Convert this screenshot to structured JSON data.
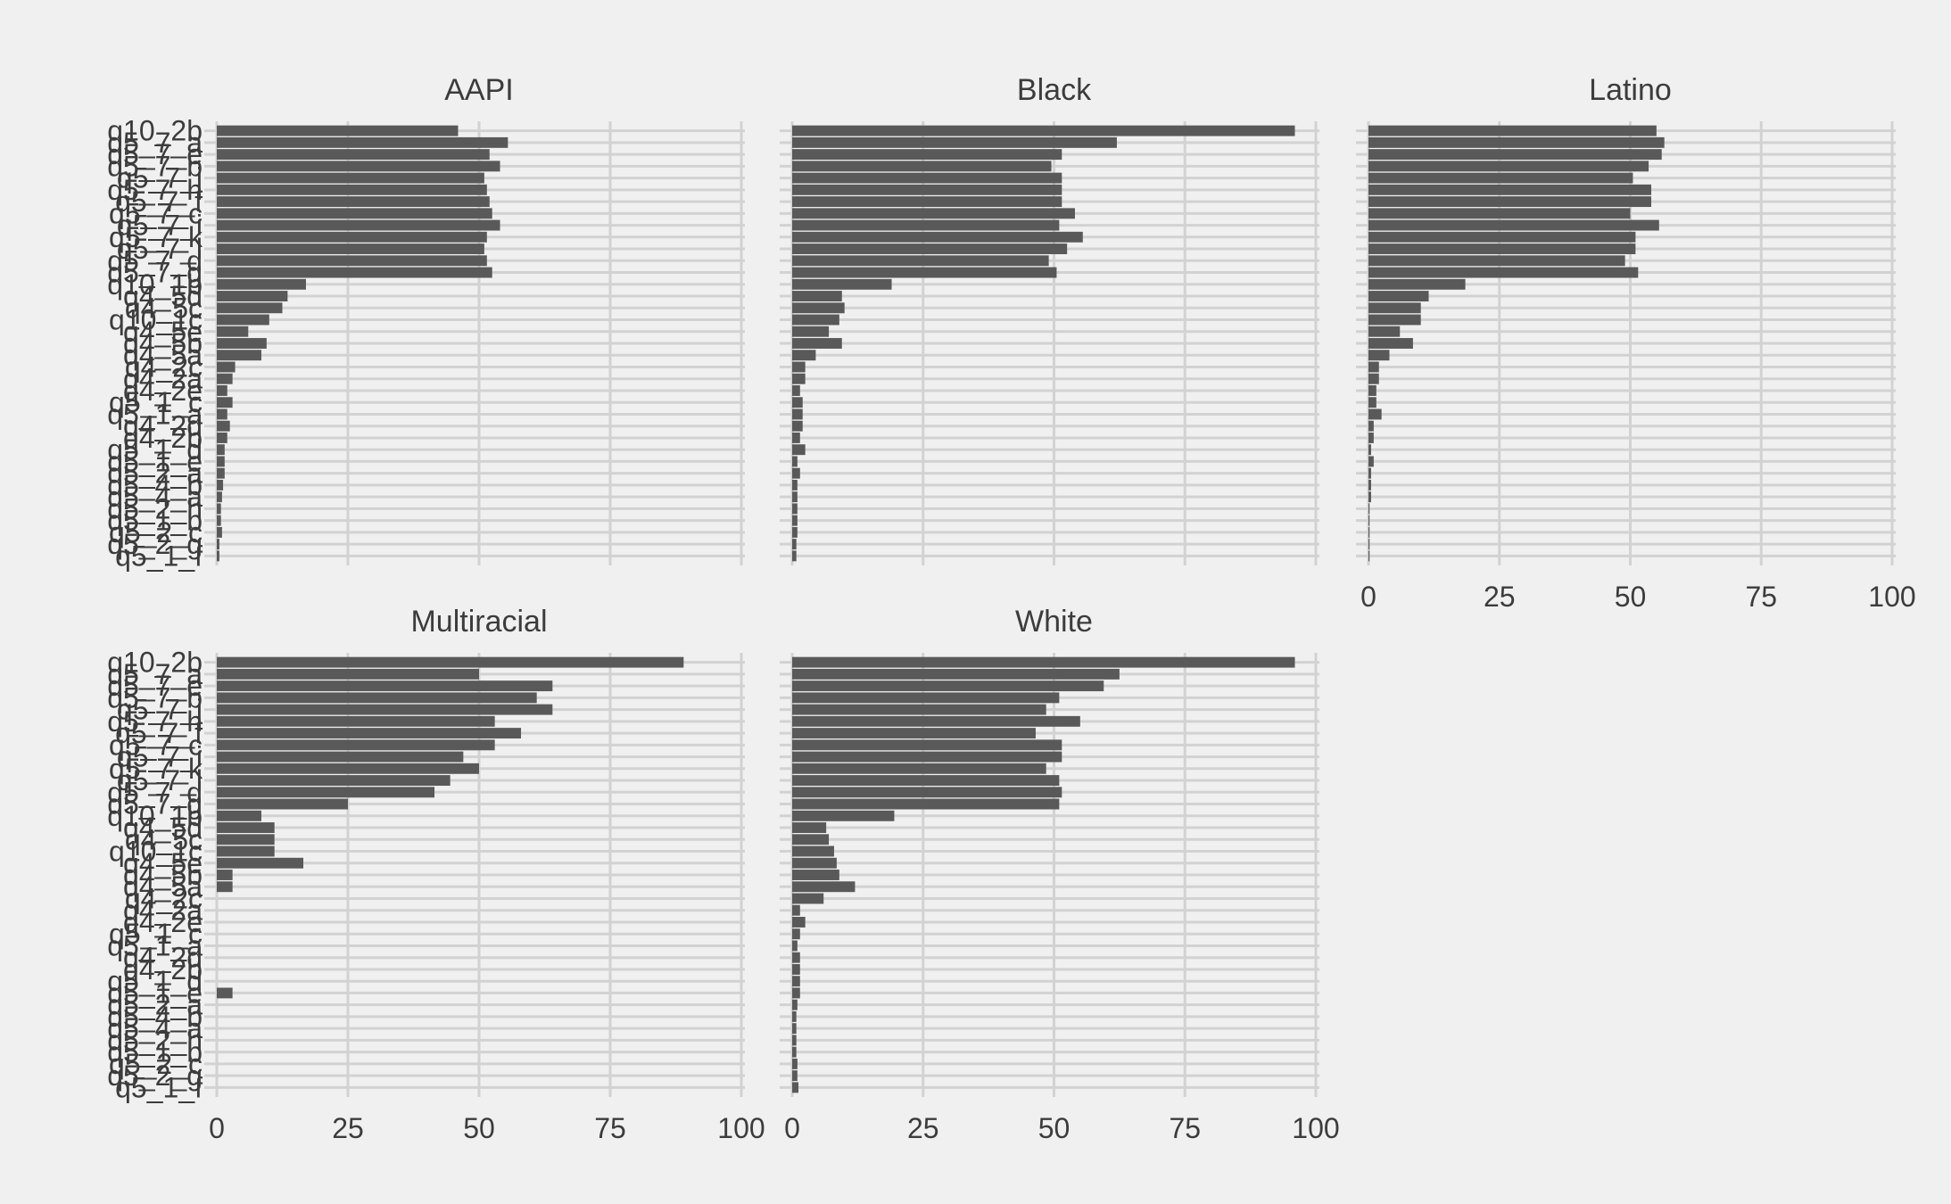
{
  "chart_data": {
    "type": "bar",
    "orientation": "horizontal",
    "facets": [
      "AAPI",
      "Black",
      "Latino",
      "Multiracial",
      "White"
    ],
    "categories": [
      "q10_2b",
      "q5_7_a",
      "q5_7_e",
      "q5_7_b",
      "q5_7_j",
      "q5_7_h",
      "q5_7_f",
      "q5_7_c",
      "q5_7_i",
      "q5_7_k",
      "q5_7_l",
      "q5_7_d",
      "q5_7_g",
      "q10_1b",
      "q4_5d",
      "q4_5c",
      "q10_1c",
      "q4_5e",
      "q4_5b",
      "q4_5a",
      "q4_2c",
      "q4_2a",
      "q4_2e",
      "q5_1_c",
      "q5_1_a",
      "q4_2d",
      "q4_2b",
      "q5_1_d",
      "q5_1_e",
      "q5_2_a",
      "q5_4_b",
      "q5_4_a",
      "q5_2_h",
      "q5_1_b",
      "q5_2_c",
      "q5_2_g",
      "q5_1_f"
    ],
    "category_labels_visible": [
      "q10_2b",
      "q5_7_a",
      "q5_7_e",
      "q5_7_b",
      "q5_7_j",
      "q5_7_h",
      "q5_7_f",
      "q5_7_c",
      "q5_7_i",
      "q5_7_k",
      "q5_7_l",
      "q5_7_d",
      "q5_7_g",
      "q10_1b",
      "q4_5d",
      "q4_5c",
      "q10_1c",
      "q4_5e",
      "q4_5b",
      "q4_5a",
      "q4_2c",
      "q4_2a",
      "q4_2e",
      "q5_1_c",
      "q5_1_a",
      "q4_2d",
      "q4_2b",
      "q5_1_d",
      "q5_1_e",
      "q5_2_a",
      "q5_4_b",
      "q5_4_a",
      "q5_2_h",
      "q5_1_b",
      "q5_2_c",
      "q5_2_g",
      "q5_1_f"
    ],
    "series": [
      {
        "values": [
          46,
          55.5,
          52,
          54,
          51,
          51.5,
          52,
          52.5,
          54,
          51.5,
          51,
          51.5,
          52.5,
          17,
          13.5,
          12.5,
          10,
          6,
          9.5,
          8.5,
          3.5,
          3,
          2,
          3,
          2,
          2.5,
          2,
          1.5,
          1.5,
          1.5,
          1.2,
          1,
          0.8,
          0.8,
          1,
          0.5,
          0.5
        ]
      },
      {
        "values": [
          96,
          62,
          51.5,
          49.5,
          51.5,
          51.5,
          51.5,
          54,
          51,
          55.5,
          52.5,
          49,
          50.5,
          19,
          9.5,
          10,
          9,
          7,
          9.5,
          4.5,
          2.5,
          2.5,
          1.5,
          2,
          2,
          2,
          1.5,
          2.5,
          1,
          1.5,
          1,
          1,
          1,
          1,
          1,
          0.8,
          0.8
        ]
      },
      {
        "values": [
          55,
          56.5,
          56,
          53.5,
          50.5,
          54,
          54,
          50,
          55.5,
          51,
          51,
          49,
          51.5,
          18.5,
          11.5,
          10,
          10,
          6,
          8.5,
          4,
          2,
          2,
          1.5,
          1.5,
          2.5,
          1,
          1,
          0.5,
          1,
          0.5,
          0.5,
          0.5,
          0.2,
          0.2,
          0.2,
          0.2,
          0.2
        ]
      },
      {
        "values": [
          89,
          50,
          64,
          61,
          64,
          53,
          58,
          53,
          47,
          50,
          44.5,
          41.5,
          25,
          8.5,
          11,
          11,
          11,
          16.5,
          3,
          3,
          0,
          0,
          0,
          0,
          0,
          0,
          0,
          0,
          3,
          0,
          0,
          0,
          0,
          0,
          0,
          0,
          0
        ]
      },
      {
        "values": [
          96,
          62.5,
          59.5,
          51,
          48.5,
          55,
          46.5,
          51.5,
          51.5,
          48.5,
          51,
          51.5,
          51,
          19.5,
          6.5,
          7,
          8,
          8.5,
          9,
          12,
          6,
          1.5,
          2.5,
          1.5,
          1,
          1.5,
          1.5,
          1.5,
          1.5,
          1,
          0.8,
          0.8,
          0.8,
          0.8,
          1,
          1,
          1.2
        ]
      }
    ],
    "xlim": [
      0,
      100
    ],
    "xticks": [
      0,
      25,
      50,
      75,
      100
    ],
    "xtick_labels": [
      "0",
      "25",
      "50",
      "75",
      "100"
    ],
    "xlabel": "",
    "ylabel": "",
    "title": "",
    "grid": true,
    "legend": "none",
    "bar_color": "#595959",
    "grid_color": "#d2d2d2",
    "background_color": "#f0f0f0",
    "text_color": "#3c3c3c"
  }
}
